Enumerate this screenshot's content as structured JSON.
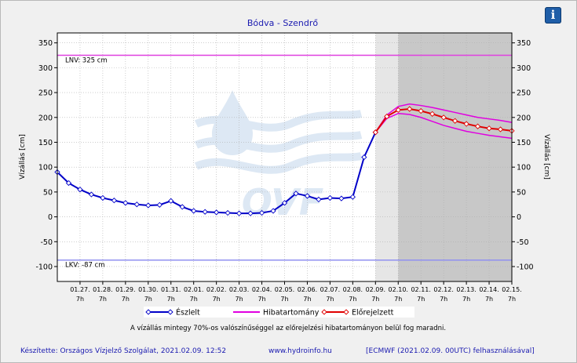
{
  "info_button": {
    "label": "i"
  },
  "chart_data": {
    "type": "line",
    "title": "Bódva - Szendrő",
    "ylabel_left": "Vízállás [cm]",
    "ylabel_right": "Vízállás [cm]",
    "ylim": [
      -130,
      370
    ],
    "yticks": [
      -100,
      -50,
      0,
      50,
      100,
      150,
      200,
      250,
      300,
      350
    ],
    "x_start": "01.26. 7h",
    "x_end": "02.15. 7h",
    "x_ticks": [
      {
        "date": "01.27.",
        "time": "7h"
      },
      {
        "date": "01.28.",
        "time": "7h"
      },
      {
        "date": "01.29.",
        "time": "7h"
      },
      {
        "date": "01.30.",
        "time": "7h"
      },
      {
        "date": "01.31.",
        "time": "7h"
      },
      {
        "date": "02.01.",
        "time": "7h"
      },
      {
        "date": "02.02.",
        "time": "7h"
      },
      {
        "date": "02.03.",
        "time": "7h"
      },
      {
        "date": "02.04.",
        "time": "7h"
      },
      {
        "date": "02.05.",
        "time": "7h"
      },
      {
        "date": "02.06.",
        "time": "7h"
      },
      {
        "date": "02.07.",
        "time": "7h"
      },
      {
        "date": "02.08.",
        "time": "7h"
      },
      {
        "date": "02.09.",
        "time": "7h"
      },
      {
        "date": "02.10.",
        "time": "7h"
      },
      {
        "date": "02.11.",
        "time": "7h"
      },
      {
        "date": "02.12.",
        "time": "7h"
      },
      {
        "date": "02.13.",
        "time": "7h"
      },
      {
        "date": "02.14.",
        "time": "7h"
      },
      {
        "date": "02.15.",
        "time": "7h"
      }
    ],
    "shading": {
      "light_from": "02.09. 7h",
      "dark_from": "02.10. 7h"
    },
    "reference_lines": [
      {
        "label": "LNV: 325 cm",
        "value": 325,
        "color": "#e040e0"
      },
      {
        "label": "LKV: -87 cm",
        "value": -87,
        "color": "#9090f0"
      }
    ],
    "series": [
      {
        "name": "Észlelt",
        "color": "#0000c8",
        "x": [
          "01.26. 7h",
          "01.26. 19h",
          "01.27. 7h",
          "01.27. 19h",
          "01.28. 7h",
          "01.28. 19h",
          "01.29. 7h",
          "01.29. 19h",
          "01.30. 7h",
          "01.30. 19h",
          "01.31. 7h",
          "01.31. 19h",
          "02.01. 7h",
          "02.01. 19h",
          "02.02. 7h",
          "02.02. 19h",
          "02.03. 7h",
          "02.03. 19h",
          "02.04. 7h",
          "02.04. 19h",
          "02.05. 7h",
          "02.05. 19h",
          "02.06. 7h",
          "02.06. 19h",
          "02.07. 7h",
          "02.07. 19h",
          "02.08. 7h",
          "02.08. 19h",
          "02.09. 7h"
        ],
        "values": [
          90,
          68,
          55,
          45,
          38,
          33,
          28,
          25,
          23,
          24,
          32,
          20,
          12,
          10,
          9,
          8,
          7,
          7,
          8,
          12,
          28,
          47,
          42,
          35,
          38,
          37,
          40,
          120,
          170
        ]
      },
      {
        "name": "Hibatartomány",
        "color": "#e000e0",
        "x": [
          "02.09. 7h",
          "02.09. 19h",
          "02.10. 7h",
          "02.10. 19h",
          "02.11. 7h",
          "02.11. 19h",
          "02.12. 7h",
          "02.12. 19h",
          "02.13. 7h",
          "02.13. 19h",
          "02.14. 7h",
          "02.14. 19h",
          "02.15. 7h"
        ],
        "upper": [
          170,
          205,
          222,
          227,
          224,
          220,
          215,
          210,
          205,
          200,
          197,
          194,
          190
        ],
        "lower": [
          170,
          198,
          208,
          206,
          200,
          192,
          184,
          178,
          172,
          168,
          164,
          161,
          158
        ]
      },
      {
        "name": "Előrejelzett",
        "color": "#e00000",
        "x": [
          "02.09. 7h",
          "02.09. 19h",
          "02.10. 7h",
          "02.10. 19h",
          "02.11. 7h",
          "02.11. 19h",
          "02.12. 7h",
          "02.12. 19h",
          "02.13. 7h",
          "02.13. 19h",
          "02.14. 7h",
          "02.14. 19h",
          "02.15. 7h"
        ],
        "values": [
          170,
          202,
          215,
          217,
          213,
          207,
          200,
          193,
          187,
          182,
          178,
          176,
          173
        ]
      }
    ],
    "legend_placement": "bottom"
  },
  "note": "A vízállás mintegy 70%-os valószínűséggel az előrejelzési hibatartományon belül fog maradni.",
  "footer": {
    "left": "Készítette: Országos Vízjelző Szolgálat, 2021.02.09. 12:52",
    "center": "www.hydroinfo.hu",
    "right": "[ECMWF (2021.02.09. 00UTC) felhasználásával]"
  },
  "watermark": "OVF"
}
